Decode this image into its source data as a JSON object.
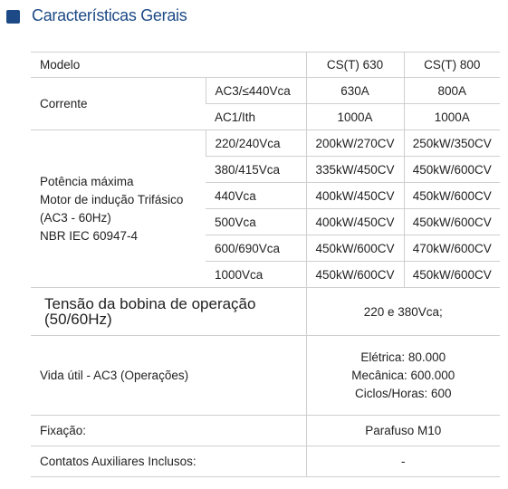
{
  "header": {
    "title": "Características Gerais"
  },
  "table": {
    "header": [
      "Modelo",
      "CS(T) 630",
      "CS(T) 800"
    ],
    "corrente": {
      "label": "Corrente",
      "rows": [
        [
          "AC3/≤440Vca",
          "630A",
          "800A"
        ],
        [
          "AC1/Ith",
          "1000A",
          "1000A"
        ]
      ]
    },
    "potencia": {
      "label_lines": [
        "Potência máxima",
        "Motor de indução Trifásico",
        "(AC3 - 60Hz)",
        "NBR IEC 60947-4"
      ],
      "rows": [
        [
          "220/240Vca",
          "200kW/270CV",
          "250kW/350CV"
        ],
        [
          "380/415Vca",
          "335kW/450CV",
          "450kW/600CV"
        ],
        [
          "440Vca",
          "400kW/450CV",
          "450kW/600CV"
        ],
        [
          "500Vca",
          "400kW/450CV",
          "450kW/600CV"
        ],
        [
          "600/690Vca",
          "450kW/600CV",
          "470kW/600CV"
        ],
        [
          "1000Vca",
          "450kW/600CV",
          "450kW/600CV"
        ]
      ]
    },
    "tensao": {
      "label_lines": [
        "Tensão da bobina de operação",
        "(50/60Hz)"
      ],
      "value": "220 e 380Vca;"
    },
    "vida": {
      "label": "Vida útil - AC3 (Operações)",
      "values": [
        "Elétrica: 80.000",
        "Mecânica: 600.000",
        "Ciclos/Horas: 600"
      ]
    },
    "fixacao": {
      "label": "Fixação:",
      "value": "Parafuso M10"
    },
    "contatos": {
      "label": "Contatos Auxiliares Inclusos:",
      "value": "-"
    }
  }
}
